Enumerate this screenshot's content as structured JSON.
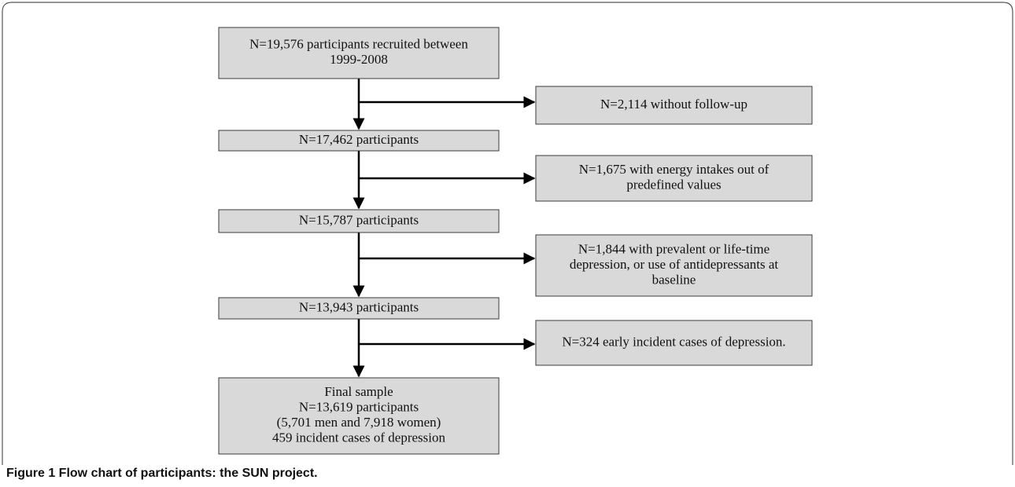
{
  "nodes": [
    {
      "lines": [
        "N=19,576 participants recruited between",
        "1999-2008"
      ]
    },
    {
      "lines": [
        "N=2,114 without follow-up"
      ]
    },
    {
      "lines": [
        "N=17,462 participants"
      ]
    },
    {
      "lines": [
        "N=1,675 with energy intakes out of",
        "predefined values"
      ]
    },
    {
      "lines": [
        "N=15,787 participants"
      ]
    },
    {
      "lines": [
        "N=1,844 with prevalent or life-time",
        "depression, or use of antidepressants at",
        "baseline"
      ]
    },
    {
      "lines": [
        "N=13,943 participants"
      ]
    },
    {
      "lines": [
        "N=324 early incident cases of depression."
      ]
    },
    {
      "lines": [
        "Final sample",
        "N=13,619 participants",
        "(5,701 men and 7,918 women)",
        "459 incident cases of depression"
      ]
    }
  ],
  "caption": "Figure 1 Flow chart of participants: the SUN project."
}
